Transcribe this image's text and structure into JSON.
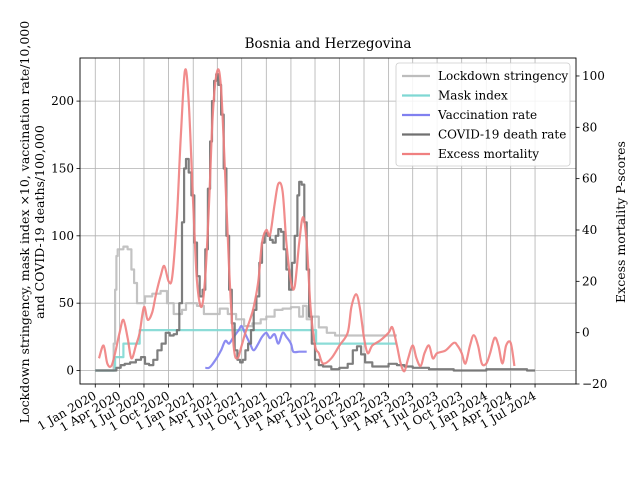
{
  "chart_data": {
    "type": "line",
    "title": "Bosnia and Herzegovina",
    "ylabel_left_line1": "Lockdown stringency, mask index ×10, vaccination rate/10,000",
    "ylabel_left_line2": "and COVID-19 deaths/100,000",
    "ylabel_right": "Excess mortality P-scores",
    "xlabel": "",
    "x_ticks": [
      "1 Jan 2020",
      "1 Apr 2020",
      "1 Jul 2020",
      "1 Oct 2020",
      "1 Jan 2021",
      "1 Apr 2021",
      "1 Jul 2021",
      "1 Oct 2021",
      "1 Jan 2022",
      "1 Apr 2022",
      "1 Jul 2022",
      "1 Oct 2022",
      "1 Jan 2023",
      "1 Apr 2023",
      "1 Jul 2023",
      "1 Oct 2023",
      "1 Jan 2024",
      "1 Apr 2024",
      "1 Jul 2024"
    ],
    "y_left_ticks": [
      "0",
      "50",
      "100",
      "150",
      "200"
    ],
    "y_right_ticks": [
      "−20",
      "0",
      "20",
      "40",
      "60",
      "80",
      "100"
    ],
    "ylim_left": [
      -10,
      232
    ],
    "ylim_right": [
      -20,
      107
    ],
    "grid": true,
    "legend_position": "top-right",
    "series": [
      {
        "name": "Lockdown stringency",
        "color": "#bdbdbd",
        "axis": "left",
        "step": true,
        "points": [
          [
            "2020-01-01",
            0
          ],
          [
            "2020-03-05",
            0
          ],
          [
            "2020-03-10",
            20
          ],
          [
            "2020-03-15",
            60
          ],
          [
            "2020-03-20",
            85
          ],
          [
            "2020-03-25",
            90
          ],
          [
            "2020-04-15",
            92
          ],
          [
            "2020-05-01",
            90
          ],
          [
            "2020-05-15",
            75
          ],
          [
            "2020-05-25",
            65
          ],
          [
            "2020-06-05",
            50
          ],
          [
            "2020-07-05",
            55
          ],
          [
            "2020-08-01",
            57
          ],
          [
            "2020-09-01",
            59
          ],
          [
            "2020-09-25",
            50
          ],
          [
            "2020-10-20",
            42
          ],
          [
            "2020-11-20",
            45
          ],
          [
            "2020-12-05",
            50
          ],
          [
            "2021-01-15",
            48
          ],
          [
            "2021-02-10",
            42
          ],
          [
            "2021-04-10",
            46
          ],
          [
            "2021-05-10",
            42
          ],
          [
            "2021-06-10",
            38
          ],
          [
            "2021-07-10",
            33
          ],
          [
            "2021-08-10",
            35
          ],
          [
            "2021-09-10",
            38
          ],
          [
            "2021-10-01",
            40
          ],
          [
            "2021-11-01",
            45
          ],
          [
            "2021-12-01",
            46
          ],
          [
            "2022-01-01",
            47
          ],
          [
            "2022-01-20",
            47
          ],
          [
            "2022-02-01",
            40
          ],
          [
            "2022-02-15",
            48
          ],
          [
            "2022-03-01",
            38
          ],
          [
            "2022-03-20",
            40
          ],
          [
            "2022-04-15",
            32
          ],
          [
            "2022-05-15",
            28
          ],
          [
            "2022-06-15",
            26
          ],
          [
            "2023-01-20",
            26
          ],
          [
            "2023-02-01",
            26
          ]
        ]
      },
      {
        "name": "Mask index",
        "color": "#7fd8d3",
        "axis": "left",
        "step": true,
        "points": [
          [
            "2020-01-01",
            0
          ],
          [
            "2020-03-05",
            0
          ],
          [
            "2020-03-15",
            10
          ],
          [
            "2020-04-15",
            20
          ],
          [
            "2020-06-15",
            30
          ],
          [
            "2022-04-01",
            30
          ],
          [
            "2022-04-05",
            20
          ],
          [
            "2022-06-01",
            20
          ],
          [
            "2022-07-01",
            20
          ],
          [
            "2022-10-01",
            20
          ],
          [
            "2023-01-20",
            20
          ],
          [
            "2023-02-01",
            20
          ]
        ]
      },
      {
        "name": "Vaccination rate",
        "color": "#8080f0",
        "axis": "left",
        "step": false,
        "points": [
          [
            "2021-02-15",
            2
          ],
          [
            "2021-03-01",
            2
          ],
          [
            "2021-03-15",
            5
          ],
          [
            "2021-04-01",
            10
          ],
          [
            "2021-04-15",
            15
          ],
          [
            "2021-05-01",
            22
          ],
          [
            "2021-05-15",
            20
          ],
          [
            "2021-06-01",
            25
          ],
          [
            "2021-06-20",
            30
          ],
          [
            "2021-07-01",
            33
          ],
          [
            "2021-07-15",
            27
          ],
          [
            "2021-08-01",
            20
          ],
          [
            "2021-08-15",
            15
          ],
          [
            "2021-09-01",
            20
          ],
          [
            "2021-09-15",
            25
          ],
          [
            "2021-10-01",
            28
          ],
          [
            "2021-10-15",
            24
          ],
          [
            "2021-11-01",
            27
          ],
          [
            "2021-11-15",
            20
          ],
          [
            "2021-12-01",
            28
          ],
          [
            "2021-12-15",
            25
          ],
          [
            "2022-01-01",
            20
          ],
          [
            "2022-01-10",
            14
          ],
          [
            "2022-02-01",
            14
          ],
          [
            "2022-03-01",
            14
          ]
        ]
      },
      {
        "name": "COVID-19 death rate",
        "color": "#707070",
        "axis": "left",
        "step": true,
        "points": [
          [
            "2020-01-01",
            0
          ],
          [
            "2020-03-10",
            0
          ],
          [
            "2020-03-20",
            2
          ],
          [
            "2020-04-05",
            4
          ],
          [
            "2020-04-20",
            5
          ],
          [
            "2020-05-10",
            6
          ],
          [
            "2020-06-01",
            8
          ],
          [
            "2020-06-20",
            10
          ],
          [
            "2020-07-05",
            5
          ],
          [
            "2020-07-20",
            4
          ],
          [
            "2020-08-05",
            8
          ],
          [
            "2020-08-20",
            15
          ],
          [
            "2020-09-05",
            20
          ],
          [
            "2020-09-20",
            28
          ],
          [
            "2020-10-05",
            26
          ],
          [
            "2020-10-20",
            27
          ],
          [
            "2020-11-01",
            30
          ],
          [
            "2020-11-10",
            50
          ],
          [
            "2020-11-20",
            110
          ],
          [
            "2020-11-28",
            150
          ],
          [
            "2020-12-05",
            157
          ],
          [
            "2020-12-15",
            147
          ],
          [
            "2020-12-25",
            130
          ],
          [
            "2021-01-05",
            95
          ],
          [
            "2021-01-15",
            70
          ],
          [
            "2021-01-25",
            55
          ],
          [
            "2021-02-05",
            60
          ],
          [
            "2021-02-15",
            90
          ],
          [
            "2021-02-25",
            135
          ],
          [
            "2021-03-05",
            170
          ],
          [
            "2021-03-12",
            200
          ],
          [
            "2021-03-20",
            215
          ],
          [
            "2021-03-28",
            220
          ],
          [
            "2021-04-05",
            212
          ],
          [
            "2021-04-15",
            190
          ],
          [
            "2021-04-25",
            150
          ],
          [
            "2021-05-05",
            100
          ],
          [
            "2021-05-15",
            60
          ],
          [
            "2021-05-25",
            35
          ],
          [
            "2021-06-05",
            15
          ],
          [
            "2021-06-15",
            8
          ],
          [
            "2021-06-25",
            6
          ],
          [
            "2021-07-05",
            8
          ],
          [
            "2021-07-15",
            15
          ],
          [
            "2021-07-25",
            20
          ],
          [
            "2021-08-05",
            30
          ],
          [
            "2021-08-15",
            45
          ],
          [
            "2021-08-25",
            55
          ],
          [
            "2021-09-05",
            80
          ],
          [
            "2021-09-15",
            95
          ],
          [
            "2021-09-25",
            102
          ],
          [
            "2021-10-05",
            100
          ],
          [
            "2021-10-15",
            97
          ],
          [
            "2021-10-25",
            95
          ],
          [
            "2021-11-05",
            100
          ],
          [
            "2021-11-15",
            105
          ],
          [
            "2021-11-25",
            103
          ],
          [
            "2021-12-05",
            90
          ],
          [
            "2021-12-15",
            75
          ],
          [
            "2021-12-25",
            60
          ],
          [
            "2022-01-05",
            80
          ],
          [
            "2022-01-15",
            100
          ],
          [
            "2022-01-25",
            130
          ],
          [
            "2022-02-01",
            140
          ],
          [
            "2022-02-10",
            138
          ],
          [
            "2022-02-20",
            110
          ],
          [
            "2022-03-01",
            75
          ],
          [
            "2022-03-10",
            40
          ],
          [
            "2022-03-20",
            20
          ],
          [
            "2022-04-01",
            8
          ],
          [
            "2022-04-15",
            4
          ],
          [
            "2022-05-01",
            3
          ],
          [
            "2022-06-01",
            1
          ],
          [
            "2022-07-01",
            2
          ],
          [
            "2022-08-01",
            5
          ],
          [
            "2022-08-20",
            15
          ],
          [
            "2022-09-05",
            18
          ],
          [
            "2022-09-20",
            12
          ],
          [
            "2022-10-05",
            6
          ],
          [
            "2022-11-01",
            3
          ],
          [
            "2022-12-01",
            3
          ],
          [
            "2023-01-01",
            5
          ],
          [
            "2023-02-01",
            4
          ],
          [
            "2023-03-01",
            3
          ],
          [
            "2023-04-01",
            2
          ],
          [
            "2023-06-01",
            1
          ],
          [
            "2023-09-01",
            0
          ],
          [
            "2024-01-01",
            1
          ],
          [
            "2024-06-01",
            0
          ],
          [
            "2024-07-01",
            0
          ]
        ]
      },
      {
        "name": "Excess mortality",
        "color": "#f08080",
        "axis": "right",
        "step": false,
        "points": [
          [
            "2020-01-15",
            -10
          ],
          [
            "2020-02-01",
            -5
          ],
          [
            "2020-02-15",
            -12
          ],
          [
            "2020-03-01",
            -13
          ],
          [
            "2020-03-15",
            -8
          ],
          [
            "2020-04-01",
            0
          ],
          [
            "2020-04-15",
            5
          ],
          [
            "2020-05-01",
            -2
          ],
          [
            "2020-05-15",
            -10
          ],
          [
            "2020-06-01",
            -5
          ],
          [
            "2020-06-15",
            0
          ],
          [
            "2020-07-01",
            10
          ],
          [
            "2020-07-15",
            5
          ],
          [
            "2020-08-01",
            8
          ],
          [
            "2020-08-15",
            15
          ],
          [
            "2020-09-01",
            22
          ],
          [
            "2020-09-15",
            26
          ],
          [
            "2020-10-01",
            20
          ],
          [
            "2020-10-15",
            22
          ],
          [
            "2020-11-01",
            45
          ],
          [
            "2020-11-15",
            75
          ],
          [
            "2020-12-01",
            102
          ],
          [
            "2020-12-15",
            90
          ],
          [
            "2021-01-01",
            50
          ],
          [
            "2021-01-15",
            20
          ],
          [
            "2021-02-01",
            10
          ],
          [
            "2021-02-15",
            22
          ],
          [
            "2021-03-01",
            50
          ],
          [
            "2021-03-15",
            85
          ],
          [
            "2021-04-01",
            102
          ],
          [
            "2021-04-15",
            95
          ],
          [
            "2021-05-01",
            60
          ],
          [
            "2021-05-15",
            25
          ],
          [
            "2021-06-01",
            -5
          ],
          [
            "2021-06-15",
            -10
          ],
          [
            "2021-07-01",
            -5
          ],
          [
            "2021-07-15",
            0
          ],
          [
            "2021-08-01",
            5
          ],
          [
            "2021-08-15",
            10
          ],
          [
            "2021-09-01",
            20
          ],
          [
            "2021-09-15",
            35
          ],
          [
            "2021-10-01",
            40
          ],
          [
            "2021-10-15",
            38
          ],
          [
            "2021-11-01",
            50
          ],
          [
            "2021-11-15",
            58
          ],
          [
            "2021-12-01",
            55
          ],
          [
            "2021-12-15",
            35
          ],
          [
            "2022-01-01",
            20
          ],
          [
            "2022-01-15",
            18
          ],
          [
            "2022-02-01",
            35
          ],
          [
            "2022-02-15",
            45
          ],
          [
            "2022-03-01",
            35
          ],
          [
            "2022-03-15",
            10
          ],
          [
            "2022-04-01",
            -5
          ],
          [
            "2022-04-15",
            -8
          ],
          [
            "2022-05-01",
            -12
          ],
          [
            "2022-06-01",
            -10
          ],
          [
            "2022-07-01",
            -5
          ],
          [
            "2022-08-01",
            0
          ],
          [
            "2022-08-15",
            10
          ],
          [
            "2022-09-01",
            15
          ],
          [
            "2022-09-15",
            10
          ],
          [
            "2022-10-01",
            -2
          ],
          [
            "2022-10-15",
            -8
          ],
          [
            "2022-11-01",
            -5
          ],
          [
            "2022-12-01",
            -3
          ],
          [
            "2023-01-01",
            0
          ],
          [
            "2023-01-15",
            2
          ],
          [
            "2023-02-01",
            -5
          ],
          [
            "2023-02-15",
            -12
          ],
          [
            "2023-03-01",
            -15
          ],
          [
            "2023-03-15",
            -10
          ],
          [
            "2023-04-01",
            -5
          ],
          [
            "2023-04-15",
            -10
          ],
          [
            "2023-05-01",
            -13
          ],
          [
            "2023-05-15",
            -8
          ],
          [
            "2023-06-01",
            -5
          ],
          [
            "2023-06-15",
            -10
          ],
          [
            "2023-07-01",
            -8
          ],
          [
            "2023-08-01",
            -7
          ],
          [
            "2023-09-01",
            -4
          ],
          [
            "2023-09-15",
            -5
          ],
          [
            "2023-10-01",
            -8
          ],
          [
            "2023-10-15",
            -12
          ],
          [
            "2023-11-01",
            -5
          ],
          [
            "2023-11-15",
            -1
          ],
          [
            "2023-12-01",
            -5
          ],
          [
            "2023-12-15",
            -12
          ],
          [
            "2024-01-01",
            -12
          ],
          [
            "2024-01-15",
            -8
          ],
          [
            "2024-02-01",
            -2
          ],
          [
            "2024-02-15",
            -5
          ],
          [
            "2024-03-01",
            -12
          ],
          [
            "2024-03-15",
            -5
          ],
          [
            "2024-04-01",
            -4
          ],
          [
            "2024-04-15",
            -13
          ]
        ]
      }
    ]
  }
}
